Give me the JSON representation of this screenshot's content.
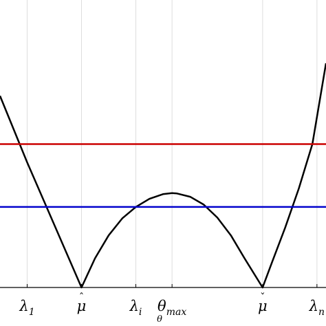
{
  "chart_data": {
    "type": "line",
    "title": "",
    "xlabel": "θ",
    "ylabel": "",
    "grid": "vertical lines at labeled ticks",
    "xlim": [
      -0.1,
      1.1
    ],
    "ylim": [
      0,
      1.05
    ],
    "ticks": [
      {
        "id": "lambda1",
        "x": 0.0,
        "base": "λ",
        "sub": "1",
        "hat": ""
      },
      {
        "id": "muhat",
        "x": 0.2,
        "base": "μ",
        "sub": "",
        "hat": "hat"
      },
      {
        "id": "lambdai",
        "x": 0.4,
        "base": "λ",
        "sub": "i",
        "hat": ""
      },
      {
        "id": "thetamax",
        "x": 0.5333,
        "base": "θ",
        "sub": "max",
        "hat": ""
      },
      {
        "id": "mucheck",
        "x": 0.8667,
        "base": "μ",
        "sub": "",
        "hat": "check"
      },
      {
        "id": "lambdan",
        "x": 1.0667,
        "base": "λ",
        "sub": "n",
        "hat": ""
      }
    ],
    "series": [
      {
        "id": "curve",
        "color": "#000000",
        "x": [
          -0.1,
          0.0,
          0.1,
          0.2,
          0.25,
          0.3,
          0.35,
          0.4,
          0.45,
          0.5,
          0.5333,
          0.55,
          0.6,
          0.65,
          0.7,
          0.75,
          0.8,
          0.8667,
          0.9,
          0.95,
          1.0,
          1.05,
          1.1
        ],
        "y": [
          0.735,
          0.48,
          0.24,
          0.0,
          0.112,
          0.2,
          0.265,
          0.309,
          0.34,
          0.358,
          0.362,
          0.361,
          0.348,
          0.318,
          0.268,
          0.2,
          0.112,
          0.0,
          0.093,
          0.23,
          0.38,
          0.55,
          0.86
        ]
      },
      {
        "id": "red-level",
        "color": "#cc0000",
        "x": [
          -0.1,
          1.1
        ],
        "y": [
          0.55,
          0.55
        ]
      },
      {
        "id": "blue-level",
        "color": "#0000cc",
        "x": [
          -0.1,
          1.1
        ],
        "y": [
          0.309,
          0.309
        ]
      }
    ]
  }
}
